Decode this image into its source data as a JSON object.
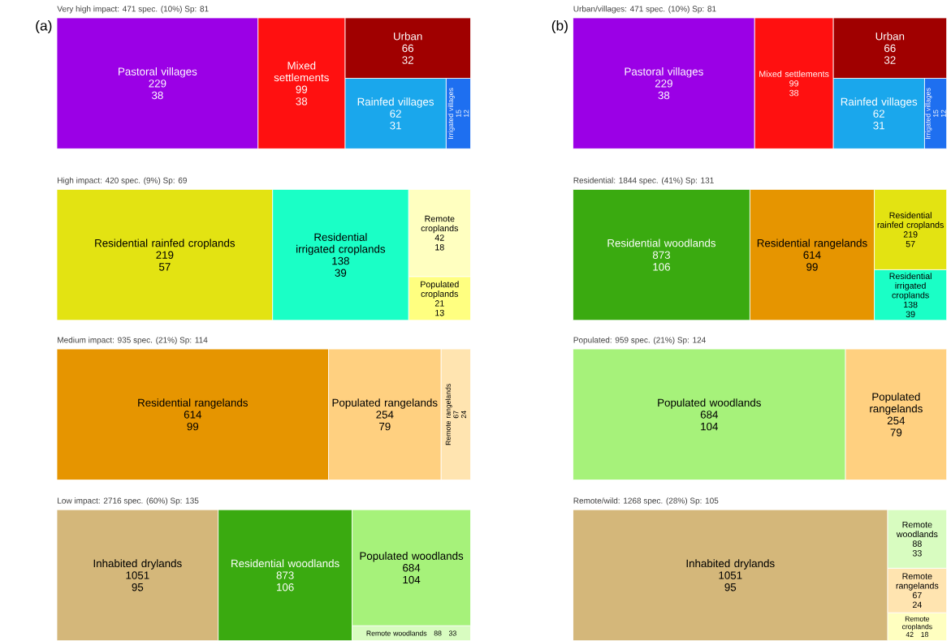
{
  "chart_data": [
    {
      "type": "other",
      "title": "Very high impact: 471 spec. (10%) Sp: 81",
      "annotations": [
        "(a)"
      ],
      "categories": [
        "Pastoral villages",
        "Rainfed villages",
        "Irrigated villages",
        "Urban",
        "Mixed settlements"
      ],
      "series": [
        {
          "colors": [
            "#9b00e6",
            "#1aa7ec",
            "#1e6ff0",
            "#a00000",
            "#ff1010"
          ],
          "values": [
            229,
            62,
            15,
            66,
            99
          ],
          "value_labels": [
            "229",
            "62",
            "15",
            "66",
            "99"
          ]
        },
        {
          "values": [
            38,
            31,
            12,
            32,
            38
          ],
          "value_labels": [
            "38",
            "31",
            "12",
            "32",
            "38"
          ]
        }
      ]
    },
    {
      "type": "other",
      "title": "Urban/villages: 471 spec. (10%) Sp: 81",
      "annotations": [
        "(b)"
      ],
      "categories": [
        "Pastoral villages",
        "Rainfed villages",
        "Irrigated villages",
        "Urban",
        "Mixed settlements"
      ],
      "series": [
        {
          "colors": [
            "#9b00e6",
            "#1aa7ec",
            "#1e6ff0",
            "#a00000",
            "#ff1010"
          ],
          "values": [
            229,
            62,
            15,
            66,
            99
          ],
          "value_labels": [
            "229",
            "62",
            "15",
            "66",
            "99"
          ]
        },
        {
          "values": [
            38,
            31,
            12,
            32,
            38
          ],
          "value_labels": [
            "38",
            "31",
            "12",
            "32",
            "38"
          ]
        }
      ]
    },
    {
      "type": "other",
      "title": "High impact: 420 spec. (9%) Sp: 69",
      "categories": [
        "Residential rainfed croplands",
        "Remote croplands",
        "Populated croplands",
        "Residential irrigated croplands"
      ],
      "series": [
        {
          "colors": [
            "#e3e312",
            "#ffffc0",
            "#ffff80",
            "#1affc6"
          ],
          "values": [
            219,
            42,
            21,
            138
          ],
          "value_labels": [
            "219",
            "42",
            "21",
            "138"
          ]
        },
        {
          "values": [
            57,
            18,
            13,
            39
          ],
          "value_labels": [
            "57",
            "18",
            "13",
            "39"
          ]
        }
      ]
    },
    {
      "type": "other",
      "title": "Residential: 1844 spec. (41%) Sp: 131",
      "categories": [
        "Residential rangelands",
        "Residential irrigated croplands",
        "Residential woodlands",
        "Residential rainfed croplands"
      ],
      "series": [
        {
          "colors": [
            "#e69500",
            "#1affc6",
            "#3aaa10",
            "#e3e312"
          ],
          "values": [
            614,
            138,
            873,
            219
          ],
          "value_labels": [
            "614",
            "138",
            "873",
            "219"
          ]
        },
        {
          "values": [
            99,
            39,
            106,
            57
          ],
          "value_labels": [
            "99",
            "39",
            "106",
            "57"
          ]
        }
      ]
    },
    {
      "type": "other",
      "title": "Medium impact: 935 spec. (21%) Sp: 114",
      "categories": [
        "Residential rangelands",
        "Remote rangelands",
        "Populated rangelands"
      ],
      "series": [
        {
          "colors": [
            "#e69500",
            "#ffe4b0",
            "#ffd080"
          ],
          "values": [
            614,
            67,
            254
          ],
          "value_labels": [
            "614",
            "67",
            "254"
          ]
        },
        {
          "values": [
            99,
            24,
            79
          ],
          "value_labels": [
            "99",
            "24",
            "79"
          ]
        }
      ]
    },
    {
      "type": "other",
      "title": "Populated: 959 spec. (21%) Sp: 124",
      "categories": [
        "Populated woodlands",
        "Populated rangelands"
      ],
      "series": [
        {
          "colors": [
            "#a6f27a",
            "#ffd080"
          ],
          "values": [
            684,
            254
          ],
          "value_labels": [
            "684",
            "254"
          ]
        },
        {
          "values": [
            104,
            79
          ],
          "value_labels": [
            "104",
            "79"
          ]
        }
      ]
    },
    {
      "type": "other",
      "title": "Low impact: 2716 spec. (60%) Sp: 135",
      "categories": [
        "Residential woodlands",
        "Inhabited drylands",
        "Remote woodlands",
        "Populated woodlands"
      ],
      "series": [
        {
          "colors": [
            "#3aaa10",
            "#d4b77a",
            "#d8fcc0",
            "#a6f27a"
          ],
          "values": [
            873,
            1051,
            88,
            684
          ],
          "value_labels": [
            "873",
            "1051",
            "88",
            "684"
          ]
        },
        {
          "values": [
            106,
            95,
            33,
            104
          ],
          "value_labels": [
            "106",
            "95",
            "33",
            "104"
          ]
        }
      ]
    },
    {
      "type": "other",
      "title": "Remote/wild: 1268 spec. (28%) Sp: 105",
      "categories": [
        "Inhabited drylands",
        "Remote croplands",
        "Remote rangelands",
        "Remote woodlands"
      ],
      "series": [
        {
          "colors": [
            "#d4b77a",
            "#ffffc0",
            "#ffe4b0",
            "#d8fcc0"
          ],
          "values": [
            1051,
            42,
            67,
            88
          ],
          "value_labels": [
            "1051",
            "42",
            "67",
            "88"
          ]
        },
        {
          "values": [
            95,
            18,
            24,
            33
          ],
          "value_labels": [
            "95",
            "18",
            "24",
            "33"
          ]
        }
      ]
    }
  ]
}
